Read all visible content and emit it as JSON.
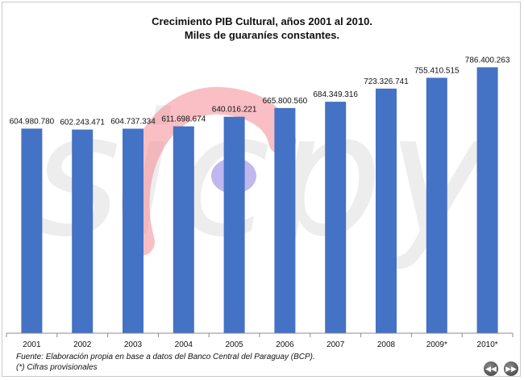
{
  "title": {
    "line1": "Crecimiento PIB Cultural, años 2001 al 2010.",
    "line2": "Miles de guaraníes constantes."
  },
  "watermark": {
    "text": "sicpy"
  },
  "source": {
    "line1": "Fuente: Elaboración propia en base a datos del Banco Central del Paraguay (BCP).",
    "line2": "(*) Cifras provisionales"
  },
  "nav": {
    "prev_icon": "rewind-icon",
    "next_icon": "fast-forward-icon",
    "prev_glyph": "◀◀",
    "next_glyph": "▶▶"
  },
  "colors": {
    "bar": "#4472C4",
    "axis": "#8c8c8c"
  },
  "chart_data": {
    "type": "bar",
    "title": "Crecimiento PIB Cultural, años 2001 al 2010.",
    "subtitle": "Miles de guaraníes constantes.",
    "categories": [
      "2001",
      "2002",
      "2003",
      "2004",
      "2005",
      "2006",
      "2007",
      "2008",
      "2009*",
      "2010*"
    ],
    "values": [
      604980780,
      602243471,
      604737334,
      611698674,
      640016221,
      665800560,
      684349316,
      723326741,
      755410515,
      786400263
    ],
    "data_labels": [
      "604.980.780",
      "602.243.471",
      "604.737.334",
      "611.698.674",
      "640.016.221",
      "665.800.560",
      "684.349.316",
      "723.326.741",
      "755.410.515",
      "786.400.263"
    ],
    "ylim": [
      0,
      866000000
    ],
    "grid": false,
    "legend": "none"
  }
}
